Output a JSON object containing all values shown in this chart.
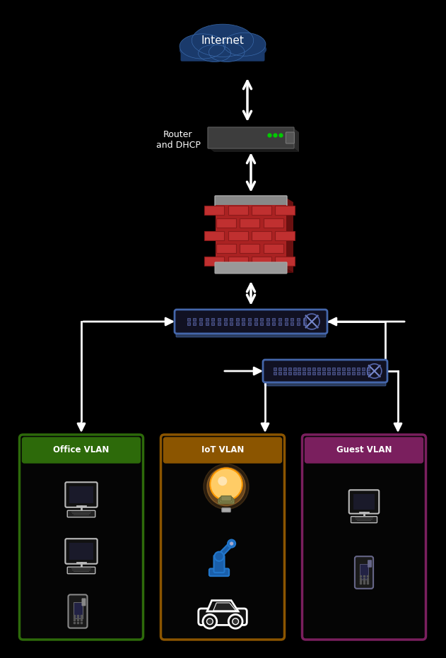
{
  "background_color": "#000000",
  "fig_width": 6.31,
  "fig_height": 9.31,
  "internet_label": "Internet",
  "router_label": "Router\nand DHCP",
  "office_color": "#2d6a0a",
  "iot_color": "#8b5500",
  "guest_color": "#7a1f5e",
  "office_label": "Office VLAN",
  "iot_label": "IoT VLAN",
  "guest_label": "Guest VLAN",
  "text_color": "#ffffff",
  "arrow_color": "#ffffff",
  "cloud_fill": "#1a3a6b",
  "cloud_highlight": "#2a5a9b",
  "switch_face": "#111122",
  "switch_edge": "#4466aa",
  "switch_bottom": "#2a3a5a"
}
